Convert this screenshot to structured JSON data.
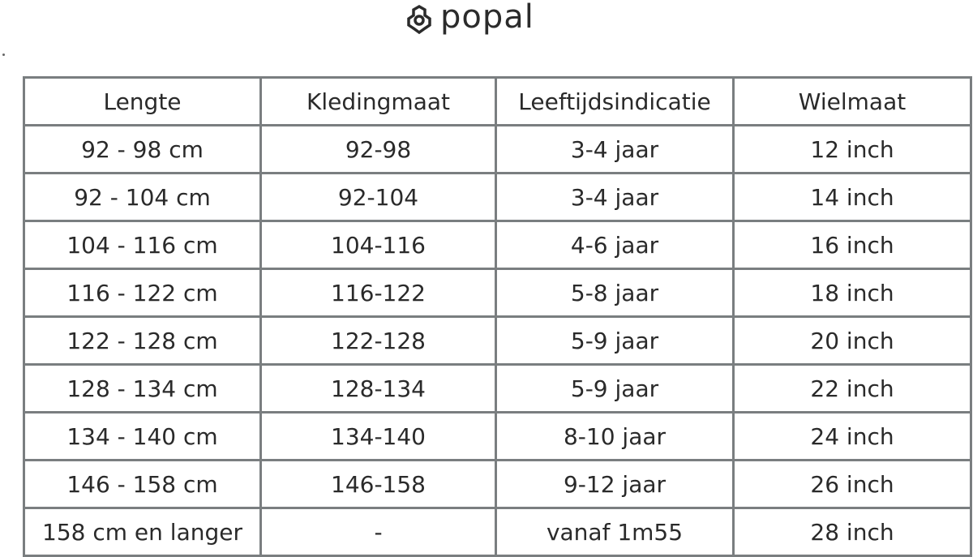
{
  "logo": {
    "text": "popal",
    "icon": "flower-hex-icon"
  },
  "table": {
    "headers": [
      "Lengte",
      "Kledingmaat",
      "Leeftijdsindicatie",
      "Wielmaat"
    ],
    "rows": [
      [
        "92 - 98 cm",
        "92-98",
        "3-4 jaar",
        "12 inch"
      ],
      [
        "92 - 104 cm",
        "92-104",
        "3-4 jaar",
        "14 inch"
      ],
      [
        "104 - 116 cm",
        "104-116",
        "4-6 jaar",
        "16 inch"
      ],
      [
        "116 - 122 cm",
        "116-122",
        "5-8 jaar",
        "18 inch"
      ],
      [
        "122 - 128 cm",
        "122-128",
        "5-9 jaar",
        "20 inch"
      ],
      [
        "128 - 134 cm",
        "128-134",
        "5-9 jaar",
        "22 inch"
      ],
      [
        "134 - 140 cm",
        "134-140",
        "8-10 jaar",
        "24 inch"
      ],
      [
        "146 - 158 cm",
        "146-158",
        "9-12 jaar",
        "26 inch"
      ],
      [
        "158 cm en langer",
        "-",
        "vanaf 1m55",
        "28 inch"
      ]
    ]
  }
}
